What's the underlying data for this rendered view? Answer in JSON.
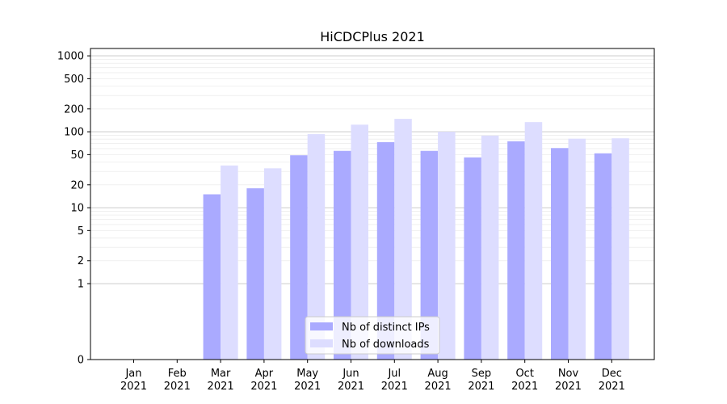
{
  "chart_data": {
    "type": "bar",
    "title": "HiCDCPlus 2021",
    "xlabel": "",
    "ylabel": "",
    "yscale": "symlog",
    "categories": [
      [
        "Jan",
        "2021"
      ],
      [
        "Feb",
        "2021"
      ],
      [
        "Mar",
        "2021"
      ],
      [
        "Apr",
        "2021"
      ],
      [
        "May",
        "2021"
      ],
      [
        "Jun",
        "2021"
      ],
      [
        "Jul",
        "2021"
      ],
      [
        "Aug",
        "2021"
      ],
      [
        "Sep",
        "2021"
      ],
      [
        "Oct",
        "2021"
      ],
      [
        "Nov",
        "2021"
      ],
      [
        "Dec",
        "2021"
      ]
    ],
    "series": [
      {
        "name": "Nb of distinct IPs",
        "color": "#aaaaff",
        "values": [
          0,
          0,
          15,
          18,
          49,
          56,
          73,
          56,
          46,
          75,
          61,
          52
        ]
      },
      {
        "name": "Nb of downloads",
        "color": "#ddddff",
        "values": [
          0,
          0,
          36,
          33,
          93,
          124,
          148,
          100,
          89,
          134,
          81,
          82
        ]
      }
    ],
    "yticks": [
      0,
      1,
      2,
      5,
      10,
      20,
      50,
      100,
      200,
      500,
      1000
    ],
    "ylim": [
      0,
      1250
    ],
    "grid": true,
    "legend_position": "bottom-center"
  }
}
